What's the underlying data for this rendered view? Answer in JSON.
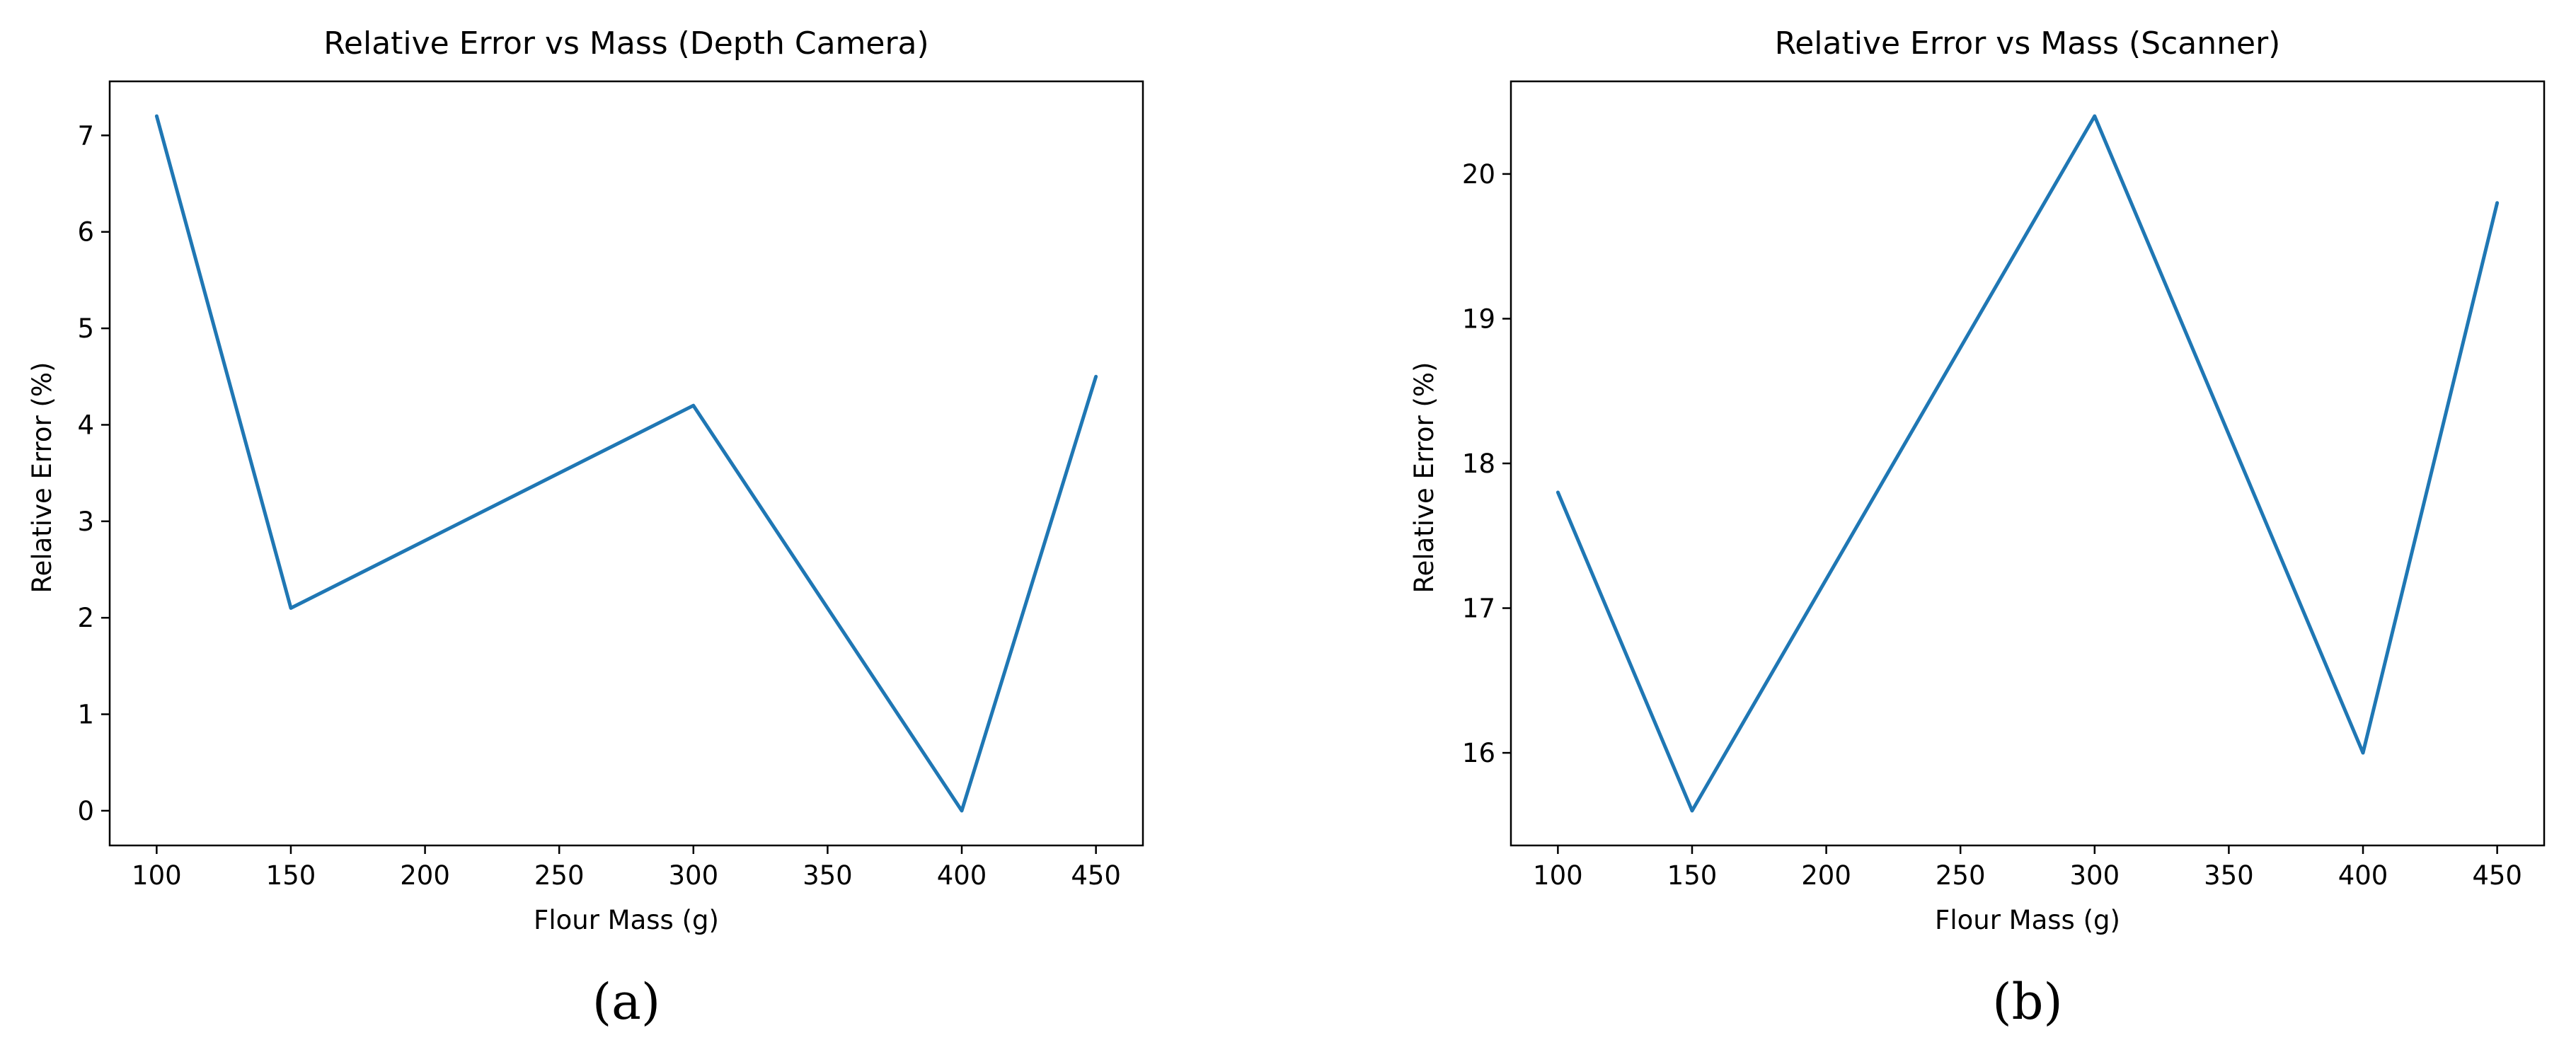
{
  "chart_data": [
    {
      "type": "line",
      "title": "Relative Error vs Mass (Depth Camera)",
      "xlabel": "Flour Mass (g)",
      "ylabel": "Relative Error (%)",
      "panel_label": "(a)",
      "x": [
        100,
        150,
        300,
        400,
        450
      ],
      "series": [
        {
          "values": [
            7.2,
            2.1,
            4.2,
            0.0,
            4.5
          ],
          "color": "#1f77b4"
        }
      ],
      "xlim": [
        82.5,
        467.5
      ],
      "ylim": [
        -0.36,
        7.56
      ],
      "xticks": [
        100,
        150,
        200,
        250,
        300,
        350,
        400,
        450
      ],
      "yticks": [
        0,
        1,
        2,
        3,
        4,
        5,
        6,
        7
      ],
      "grid": false
    },
    {
      "type": "line",
      "title": "Relative Error vs Mass (Scanner)",
      "xlabel": "Flour Mass (g)",
      "ylabel": "Relative Error (%)",
      "panel_label": "(b)",
      "x": [
        100,
        150,
        300,
        400,
        450
      ],
      "series": [
        {
          "values": [
            17.8,
            15.6,
            20.4,
            16.0,
            19.8
          ],
          "color": "#1f77b4"
        }
      ],
      "xlim": [
        82.5,
        467.5
      ],
      "ylim": [
        15.36,
        20.64
      ],
      "xticks": [
        100,
        150,
        200,
        250,
        300,
        350,
        400,
        450
      ],
      "yticks": [
        16,
        17,
        18,
        19,
        20
      ],
      "grid": false
    }
  ]
}
